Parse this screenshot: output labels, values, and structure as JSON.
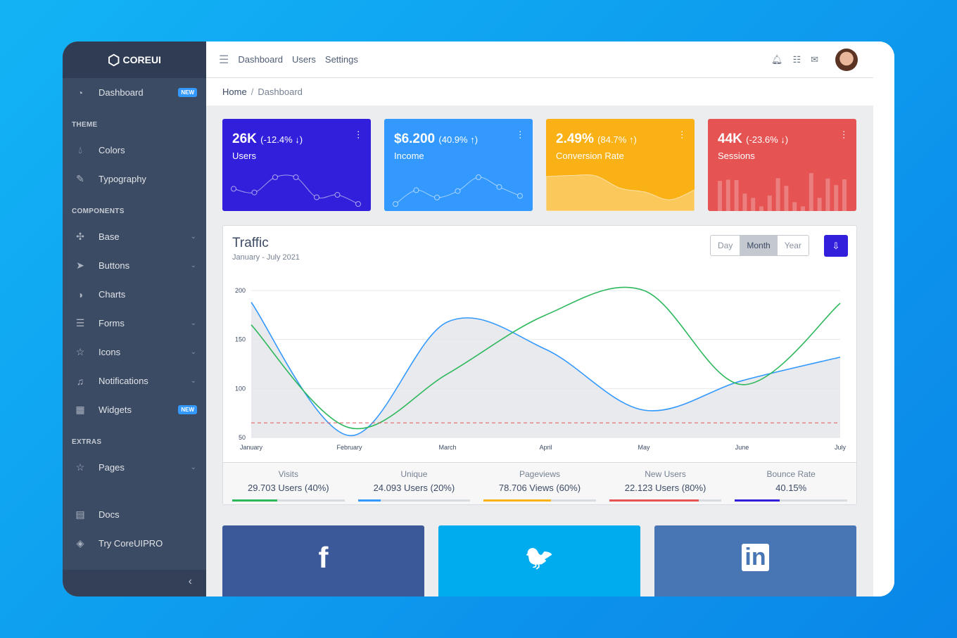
{
  "brand": "COREUI",
  "sidebar": {
    "dashboard": {
      "label": "Dashboard",
      "badge": "NEW"
    },
    "sections": {
      "theme": "THEME",
      "components": "COMPONENTS",
      "extras": "EXTRAS"
    },
    "theme": [
      {
        "label": "Colors",
        "icon": "drop-icon"
      },
      {
        "label": "Typography",
        "icon": "pencil-icon"
      }
    ],
    "components": [
      {
        "label": "Base",
        "icon": "puzzle-icon",
        "chevron": true
      },
      {
        "label": "Buttons",
        "icon": "cursor-icon",
        "chevron": true
      },
      {
        "label": "Charts",
        "icon": "chart-pie-icon"
      },
      {
        "label": "Forms",
        "icon": "notes-icon",
        "chevron": true
      },
      {
        "label": "Icons",
        "icon": "star-icon",
        "chevron": true
      },
      {
        "label": "Notifications",
        "icon": "bell-icon",
        "chevron": true
      },
      {
        "label": "Widgets",
        "icon": "calculator-icon",
        "badge": "NEW"
      }
    ],
    "extras": [
      {
        "label": "Pages",
        "icon": "star-icon",
        "chevron": true
      }
    ],
    "bottom": [
      {
        "label": "Docs",
        "icon": "description-icon"
      },
      {
        "label": "Try CoreUIPRO",
        "icon": "layers-icon"
      }
    ]
  },
  "header": {
    "links": [
      "Dashboard",
      "Users",
      "Settings"
    ]
  },
  "breadcrumb": {
    "home": "Home",
    "current": "Dashboard"
  },
  "widgets": [
    {
      "value": "26K",
      "change": "(-12.4% ↓)",
      "label": "Users",
      "color": "#321fdb",
      "points": [
        65,
        59,
        84,
        84,
        51,
        55,
        40
      ]
    },
    {
      "value": "$6.200",
      "change": "(40.9% ↑)",
      "label": "Income",
      "color": "#3399ff",
      "points": [
        1,
        18,
        9,
        17,
        34,
        22,
        11
      ]
    },
    {
      "value": "2.49%",
      "change": "(84.7% ↑)",
      "label": "Conversion Rate",
      "color": "#f9b115",
      "points": [
        78,
        81,
        80,
        45,
        34,
        12,
        40
      ]
    },
    {
      "value": "44K",
      "change": "(-23.6% ↓)",
      "label": "Sessions",
      "color": "#e55353",
      "bars": [
        78,
        81,
        80,
        45,
        34,
        12,
        40,
        85,
        65,
        23,
        12,
        98,
        34,
        84,
        67,
        82
      ]
    }
  ],
  "traffic": {
    "title": "Traffic",
    "subtitle": "January - July 2021",
    "ranges": [
      "Day",
      "Month",
      "Year"
    ],
    "selected": "Month",
    "download_icon": "cloud-download-icon"
  },
  "chart_data": {
    "type": "line",
    "categories": [
      "January",
      "February",
      "March",
      "April",
      "May",
      "June",
      "July"
    ],
    "ylim": [
      50,
      200
    ],
    "yticks": [
      50,
      100,
      150,
      200
    ],
    "grid": true,
    "series": [
      {
        "values": [
          188,
          52,
          168,
          140,
          78,
          108,
          132
        ],
        "color": "#3399ff",
        "fill": "#e4e5e8"
      },
      {
        "values": [
          165,
          60,
          115,
          175,
          200,
          104,
          187
        ],
        "color": "#2eb85c"
      },
      {
        "values": [
          65,
          65,
          65,
          65,
          65,
          65,
          65
        ],
        "color": "#e55353",
        "dashed": true
      }
    ]
  },
  "stats": [
    {
      "title": "Visits",
      "value": "29.703 Users (40%)",
      "percent": 40,
      "color": "#2eb85c"
    },
    {
      "title": "Unique",
      "value": "24.093 Users (20%)",
      "percent": 20,
      "color": "#3399ff"
    },
    {
      "title": "Pageviews",
      "value": "78.706 Views (60%)",
      "percent": 60,
      "color": "#f9b115"
    },
    {
      "title": "New Users",
      "value": "22.123 Users (80%)",
      "percent": 80,
      "color": "#e55353"
    },
    {
      "title": "Bounce Rate",
      "value": "40.15%",
      "percent": 40,
      "color": "#321fdb"
    }
  ],
  "social": [
    {
      "icon": "facebook-icon",
      "color": "#3b5998",
      "glyph": "f"
    },
    {
      "icon": "twitter-icon",
      "color": "#00aced",
      "glyph": "🐦"
    },
    {
      "icon": "linkedin-icon",
      "color": "#4875b4",
      "glyph": "in"
    }
  ]
}
